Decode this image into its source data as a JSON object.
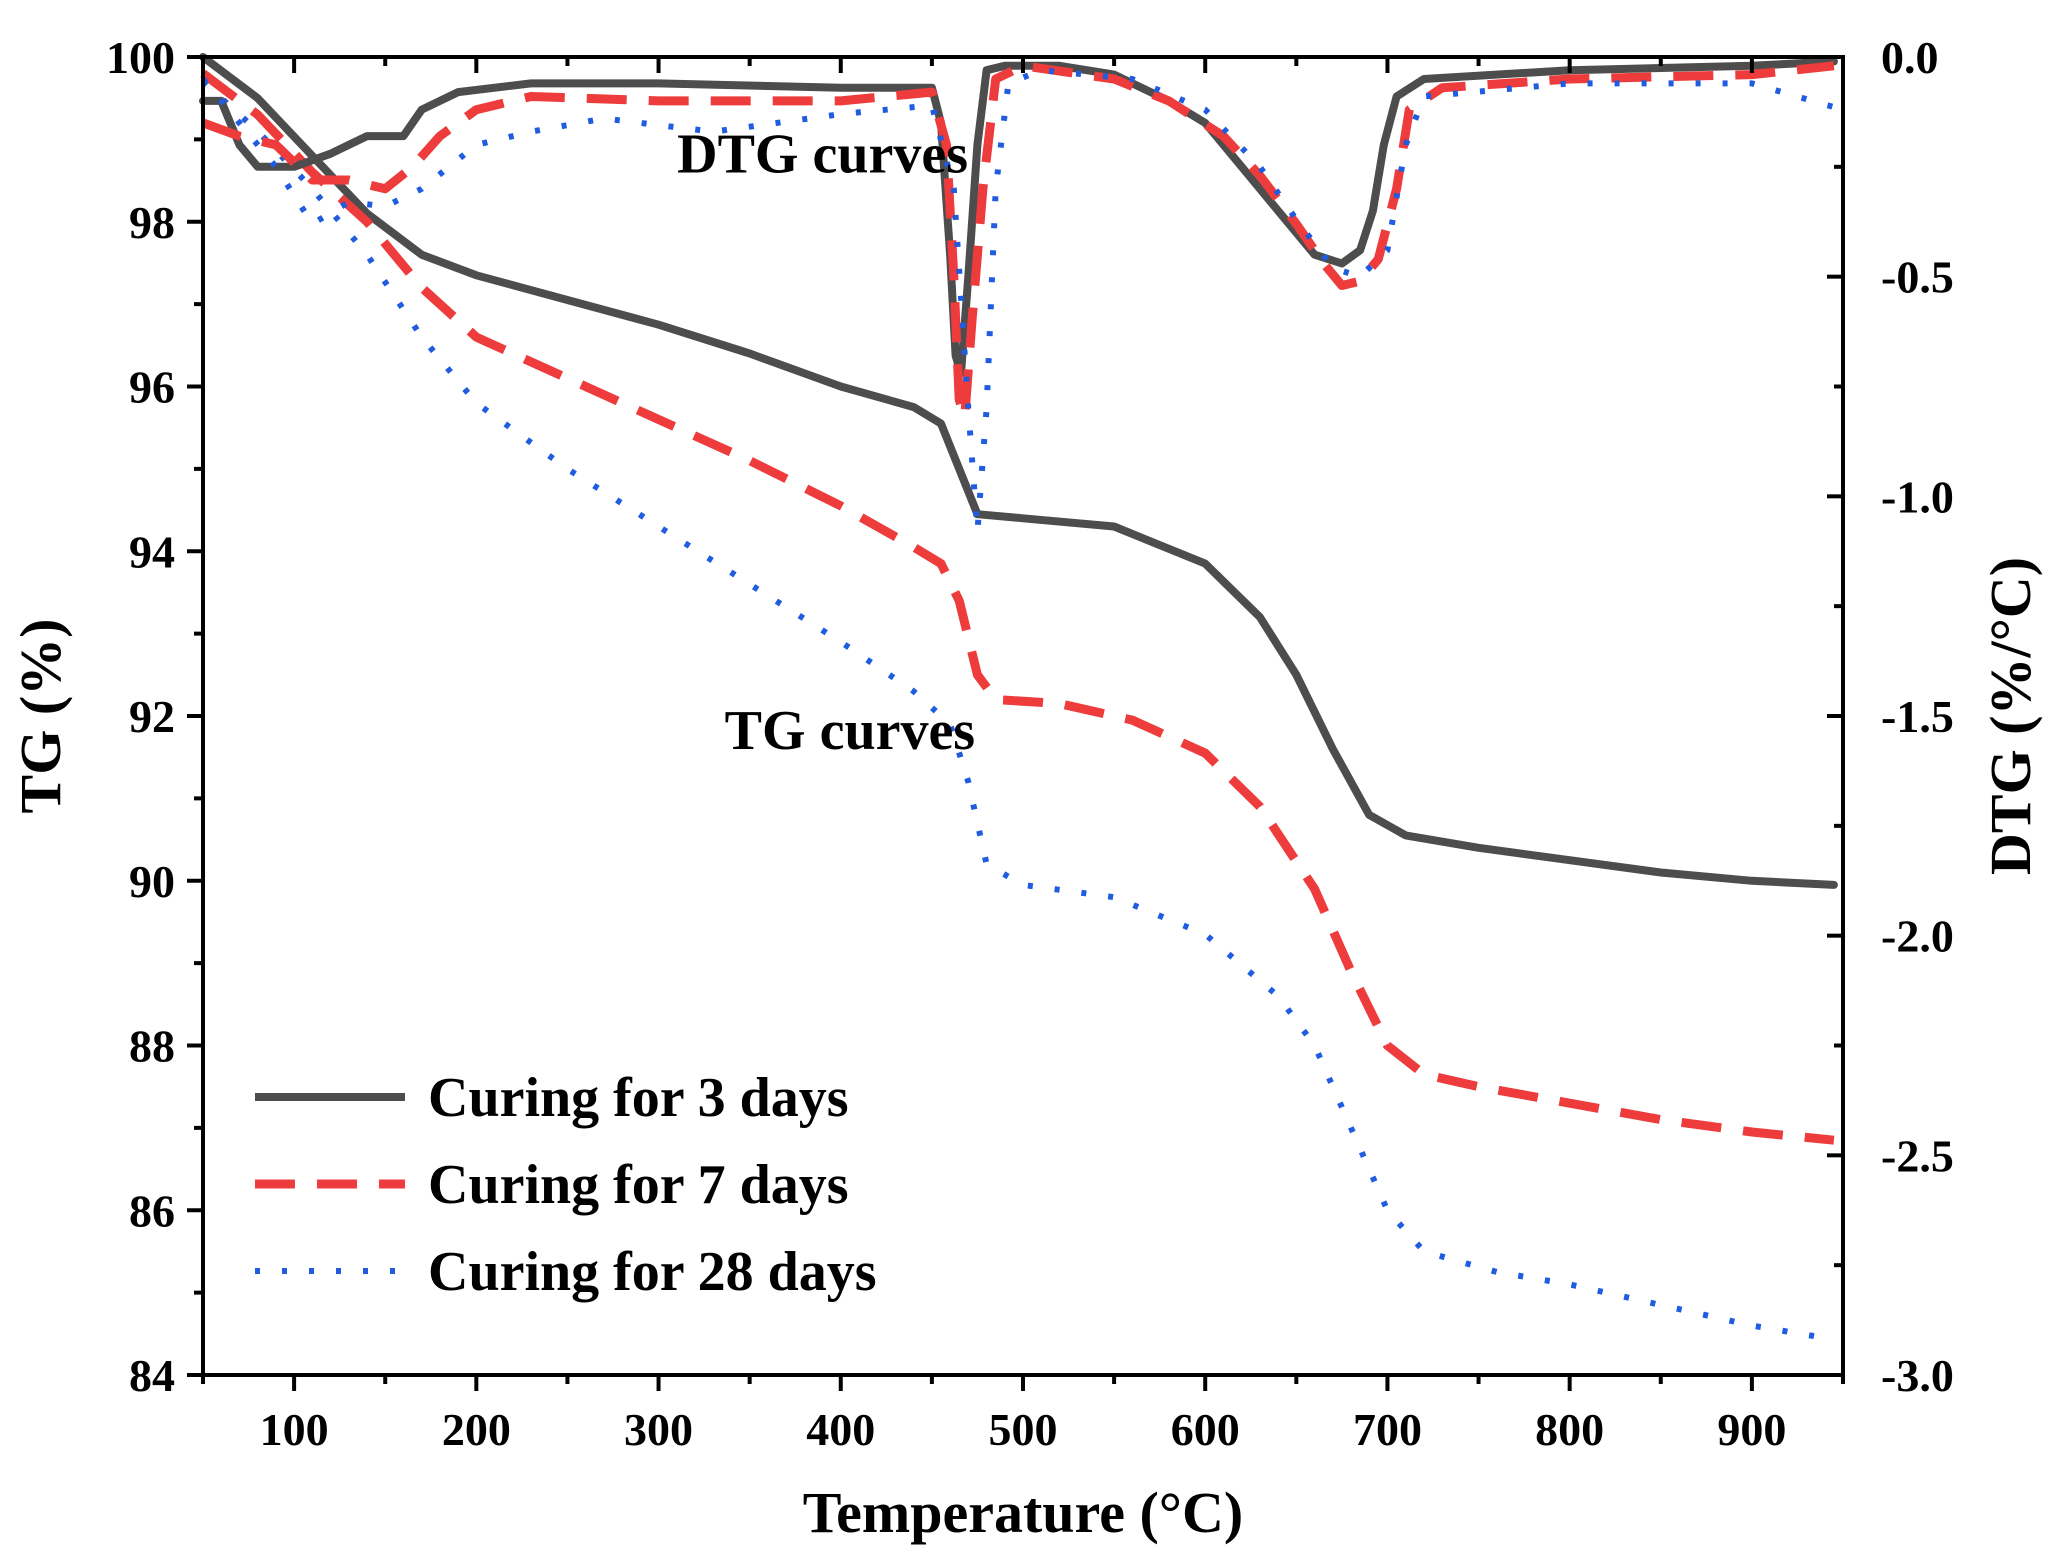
{
  "chart_data": {
    "type": "line",
    "xlabel": "Temperature (°C)",
    "ylabel_left": "TG (%)",
    "ylabel_right": "DTG (%/°C)",
    "xlim": [
      50,
      950
    ],
    "ylim_left": [
      84,
      100
    ],
    "ylim_right": [
      -3.0,
      0.0
    ],
    "x_ticks": [
      100,
      200,
      300,
      400,
      500,
      600,
      700,
      800,
      900
    ],
    "y_ticks_left": [
      84,
      86,
      88,
      90,
      92,
      94,
      96,
      98,
      100
    ],
    "y_ticks_right": [
      "-3.0",
      "-2.5",
      "-2.0",
      "-1.5",
      "-1.0",
      "-0.5",
      "0.0"
    ],
    "y_tick_values_right": [
      -3.0,
      -2.5,
      -2.0,
      -1.5,
      -1.0,
      -0.5,
      0.0
    ],
    "grid": false,
    "legend_position": "bottom-left",
    "annotations": [
      {
        "text": "DTG curves",
        "x": 390,
        "y": 98.6
      },
      {
        "text": "TG curves",
        "x": 405,
        "y": 91.6
      }
    ],
    "tg_series": [
      {
        "name": "Curing for 3 days",
        "color": "#4d4d4d",
        "style": "solid",
        "points": [
          [
            50,
            100.0
          ],
          [
            80,
            99.5
          ],
          [
            110,
            98.8
          ],
          [
            140,
            98.1
          ],
          [
            170,
            97.6
          ],
          [
            200,
            97.35
          ],
          [
            250,
            97.05
          ],
          [
            300,
            96.75
          ],
          [
            350,
            96.4
          ],
          [
            400,
            96.0
          ],
          [
            440,
            95.75
          ],
          [
            455,
            95.55
          ],
          [
            465,
            95.0
          ],
          [
            475,
            94.45
          ],
          [
            500,
            94.4
          ],
          [
            550,
            94.3
          ],
          [
            600,
            93.85
          ],
          [
            630,
            93.2
          ],
          [
            650,
            92.5
          ],
          [
            670,
            91.6
          ],
          [
            690,
            90.8
          ],
          [
            710,
            90.55
          ],
          [
            750,
            90.4
          ],
          [
            800,
            90.25
          ],
          [
            850,
            90.1
          ],
          [
            900,
            90.0
          ],
          [
            945,
            89.95
          ]
        ]
      },
      {
        "name": "Curing for 7 days",
        "color": "#ee3b3b",
        "style": "dashed",
        "points": [
          [
            50,
            99.8
          ],
          [
            80,
            99.3
          ],
          [
            110,
            98.6
          ],
          [
            140,
            98.0
          ],
          [
            170,
            97.2
          ],
          [
            200,
            96.6
          ],
          [
            250,
            96.1
          ],
          [
            300,
            95.6
          ],
          [
            350,
            95.1
          ],
          [
            400,
            94.55
          ],
          [
            440,
            94.05
          ],
          [
            455,
            93.85
          ],
          [
            465,
            93.4
          ],
          [
            475,
            92.5
          ],
          [
            485,
            92.2
          ],
          [
            520,
            92.15
          ],
          [
            560,
            91.95
          ],
          [
            600,
            91.55
          ],
          [
            630,
            90.9
          ],
          [
            660,
            89.9
          ],
          [
            680,
            88.9
          ],
          [
            700,
            88.0
          ],
          [
            720,
            87.65
          ],
          [
            750,
            87.5
          ],
          [
            800,
            87.3
          ],
          [
            850,
            87.1
          ],
          [
            900,
            86.95
          ],
          [
            945,
            86.85
          ]
        ]
      },
      {
        "name": "Curing for 28 days",
        "color": "#1f5ce0",
        "style": "dotted",
        "points": [
          [
            50,
            99.7
          ],
          [
            80,
            99.1
          ],
          [
            110,
            98.4
          ],
          [
            140,
            97.6
          ],
          [
            170,
            96.6
          ],
          [
            200,
            95.8
          ],
          [
            250,
            95.0
          ],
          [
            300,
            94.3
          ],
          [
            350,
            93.6
          ],
          [
            400,
            92.9
          ],
          [
            440,
            92.3
          ],
          [
            460,
            91.9
          ],
          [
            470,
            91.2
          ],
          [
            480,
            90.2
          ],
          [
            500,
            89.95
          ],
          [
            550,
            89.8
          ],
          [
            600,
            89.35
          ],
          [
            640,
            88.6
          ],
          [
            660,
            88.0
          ],
          [
            680,
            87.0
          ],
          [
            700,
            86.0
          ],
          [
            720,
            85.5
          ],
          [
            760,
            85.25
          ],
          [
            800,
            85.1
          ],
          [
            850,
            84.85
          ],
          [
            900,
            84.6
          ],
          [
            940,
            84.45
          ]
        ]
      }
    ],
    "dtg_series": [
      {
        "name": "Curing for 3 days",
        "color": "#4d4d4d",
        "style": "solid",
        "points": [
          [
            50,
            -0.1
          ],
          [
            60,
            -0.1
          ],
          [
            70,
            -0.2
          ],
          [
            80,
            -0.25
          ],
          [
            100,
            -0.25
          ],
          [
            120,
            -0.22
          ],
          [
            130,
            -0.2
          ],
          [
            140,
            -0.18
          ],
          [
            160,
            -0.18
          ],
          [
            170,
            -0.12
          ],
          [
            190,
            -0.08
          ],
          [
            230,
            -0.06
          ],
          [
            300,
            -0.06
          ],
          [
            400,
            -0.07
          ],
          [
            450,
            -0.07
          ],
          [
            455,
            -0.15
          ],
          [
            460,
            -0.45
          ],
          [
            463,
            -0.68
          ],
          [
            466,
            -0.72
          ],
          [
            470,
            -0.5
          ],
          [
            475,
            -0.2
          ],
          [
            480,
            -0.03
          ],
          [
            490,
            -0.02
          ],
          [
            520,
            -0.02
          ],
          [
            550,
            -0.04
          ],
          [
            580,
            -0.1
          ],
          [
            600,
            -0.15
          ],
          [
            620,
            -0.25
          ],
          [
            640,
            -0.35
          ],
          [
            660,
            -0.45
          ],
          [
            675,
            -0.47
          ],
          [
            685,
            -0.44
          ],
          [
            692,
            -0.35
          ],
          [
            698,
            -0.2
          ],
          [
            705,
            -0.09
          ],
          [
            720,
            -0.05
          ],
          [
            800,
            -0.03
          ],
          [
            900,
            -0.02
          ],
          [
            945,
            -0.01
          ]
        ]
      },
      {
        "name": "Curing for 7 days",
        "color": "#ee3b3b",
        "style": "dashed",
        "points": [
          [
            50,
            -0.15
          ],
          [
            70,
            -0.18
          ],
          [
            90,
            -0.2
          ],
          [
            110,
            -0.28
          ],
          [
            130,
            -0.28
          ],
          [
            150,
            -0.3
          ],
          [
            165,
            -0.25
          ],
          [
            180,
            -0.18
          ],
          [
            200,
            -0.12
          ],
          [
            230,
            -0.09
          ],
          [
            300,
            -0.1
          ],
          [
            400,
            -0.1
          ],
          [
            450,
            -0.08
          ],
          [
            458,
            -0.2
          ],
          [
            462,
            -0.5
          ],
          [
            465,
            -0.78
          ],
          [
            468,
            -0.82
          ],
          [
            472,
            -0.6
          ],
          [
            478,
            -0.3
          ],
          [
            485,
            -0.05
          ],
          [
            500,
            -0.02
          ],
          [
            550,
            -0.05
          ],
          [
            580,
            -0.1
          ],
          [
            610,
            -0.18
          ],
          [
            630,
            -0.27
          ],
          [
            650,
            -0.38
          ],
          [
            665,
            -0.47
          ],
          [
            675,
            -0.52
          ],
          [
            685,
            -0.51
          ],
          [
            695,
            -0.46
          ],
          [
            705,
            -0.3
          ],
          [
            712,
            -0.12
          ],
          [
            730,
            -0.07
          ],
          [
            800,
            -0.05
          ],
          [
            900,
            -0.04
          ],
          [
            945,
            -0.02
          ]
        ]
      },
      {
        "name": "Curing for 28 days",
        "color": "#1f5ce0",
        "style": "dotted",
        "points": [
          [
            50,
            -0.05
          ],
          [
            70,
            -0.15
          ],
          [
            90,
            -0.25
          ],
          [
            110,
            -0.38
          ],
          [
            130,
            -0.33
          ],
          [
            150,
            -0.34
          ],
          [
            170,
            -0.3
          ],
          [
            200,
            -0.2
          ],
          [
            230,
            -0.17
          ],
          [
            270,
            -0.14
          ],
          [
            330,
            -0.17
          ],
          [
            400,
            -0.13
          ],
          [
            450,
            -0.11
          ],
          [
            462,
            -0.3
          ],
          [
            470,
            -0.8
          ],
          [
            475,
            -1.08
          ],
          [
            480,
            -0.8
          ],
          [
            485,
            -0.3
          ],
          [
            492,
            -0.06
          ],
          [
            510,
            -0.03
          ],
          [
            560,
            -0.05
          ],
          [
            600,
            -0.12
          ],
          [
            630,
            -0.25
          ],
          [
            650,
            -0.37
          ],
          [
            670,
            -0.48
          ],
          [
            685,
            -0.5
          ],
          [
            700,
            -0.44
          ],
          [
            710,
            -0.2
          ],
          [
            720,
            -0.09
          ],
          [
            800,
            -0.06
          ],
          [
            900,
            -0.06
          ],
          [
            950,
            -0.12
          ]
        ]
      }
    ]
  }
}
